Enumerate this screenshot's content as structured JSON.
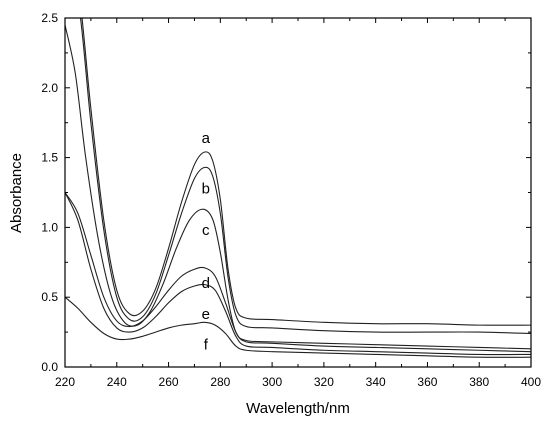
{
  "chart_data": {
    "type": "line",
    "title": "",
    "xlabel": "Wavelength/nm",
    "ylabel": "Absorbance",
    "xlim": [
      220,
      400
    ],
    "ylim": [
      0.0,
      2.5
    ],
    "grid": false,
    "legend": "none",
    "line_color": "#222222",
    "x_ticks": [
      220,
      240,
      260,
      280,
      300,
      320,
      340,
      360,
      380,
      400
    ],
    "x_tick_labels": [
      "220",
      "240",
      "260",
      "280",
      "300",
      "320",
      "340",
      "360",
      "380",
      "400"
    ],
    "y_ticks": [
      0.0,
      0.5,
      1.0,
      1.5,
      2.0,
      2.5
    ],
    "y_tick_labels": [
      "0.0",
      "0.5",
      "1.0",
      "1.5",
      "2.0",
      "2.5"
    ],
    "series": [
      {
        "name": "a",
        "label_anchor": [
          274,
          1.64
        ],
        "points": [
          [
            220,
            3.5
          ],
          [
            226,
            2.6
          ],
          [
            230,
            1.85
          ],
          [
            235,
            1.05
          ],
          [
            240,
            0.55
          ],
          [
            245,
            0.38
          ],
          [
            250,
            0.4
          ],
          [
            255,
            0.56
          ],
          [
            260,
            0.85
          ],
          [
            265,
            1.18
          ],
          [
            270,
            1.45
          ],
          [
            274,
            1.54
          ],
          [
            277,
            1.48
          ],
          [
            280,
            1.2
          ],
          [
            283,
            0.7
          ],
          [
            286,
            0.42
          ],
          [
            290,
            0.35
          ],
          [
            300,
            0.34
          ],
          [
            320,
            0.32
          ],
          [
            340,
            0.31
          ],
          [
            360,
            0.31
          ],
          [
            380,
            0.3
          ],
          [
            400,
            0.3
          ]
        ]
      },
      {
        "name": "b",
        "label_anchor": [
          274,
          1.28
        ],
        "points": [
          [
            220,
            3.3
          ],
          [
            226,
            2.5
          ],
          [
            230,
            1.75
          ],
          [
            235,
            0.98
          ],
          [
            240,
            0.5
          ],
          [
            245,
            0.34
          ],
          [
            250,
            0.36
          ],
          [
            255,
            0.52
          ],
          [
            260,
            0.8
          ],
          [
            265,
            1.1
          ],
          [
            270,
            1.35
          ],
          [
            274,
            1.43
          ],
          [
            277,
            1.37
          ],
          [
            280,
            1.1
          ],
          [
            283,
            0.64
          ],
          [
            286,
            0.37
          ],
          [
            290,
            0.29
          ],
          [
            300,
            0.28
          ],
          [
            320,
            0.26
          ],
          [
            340,
            0.25
          ],
          [
            360,
            0.25
          ],
          [
            380,
            0.25
          ],
          [
            400,
            0.24
          ]
        ]
      },
      {
        "name": "c",
        "label_anchor": [
          274,
          0.98
        ],
        "points": [
          [
            220,
            2.45
          ],
          [
            224,
            2.1
          ],
          [
            228,
            1.5
          ],
          [
            233,
            0.9
          ],
          [
            238,
            0.5
          ],
          [
            243,
            0.32
          ],
          [
            248,
            0.3
          ],
          [
            253,
            0.4
          ],
          [
            258,
            0.6
          ],
          [
            263,
            0.85
          ],
          [
            268,
            1.05
          ],
          [
            273,
            1.13
          ],
          [
            277,
            1.06
          ],
          [
            280,
            0.82
          ],
          [
            283,
            0.48
          ],
          [
            286,
            0.25
          ],
          [
            290,
            0.19
          ],
          [
            300,
            0.18
          ],
          [
            320,
            0.17
          ],
          [
            340,
            0.16
          ],
          [
            360,
            0.15
          ],
          [
            380,
            0.14
          ],
          [
            400,
            0.13
          ]
        ]
      },
      {
        "name": "d",
        "label_anchor": [
          274,
          0.6
        ],
        "points": [
          [
            220,
            1.25
          ],
          [
            225,
            1.1
          ],
          [
            230,
            0.8
          ],
          [
            235,
            0.5
          ],
          [
            240,
            0.33
          ],
          [
            245,
            0.29
          ],
          [
            250,
            0.33
          ],
          [
            255,
            0.43
          ],
          [
            260,
            0.55
          ],
          [
            265,
            0.65
          ],
          [
            270,
            0.7
          ],
          [
            274,
            0.71
          ],
          [
            278,
            0.65
          ],
          [
            282,
            0.46
          ],
          [
            286,
            0.25
          ],
          [
            290,
            0.18
          ],
          [
            300,
            0.17
          ],
          [
            320,
            0.15
          ],
          [
            340,
            0.14
          ],
          [
            360,
            0.13
          ],
          [
            380,
            0.12
          ],
          [
            400,
            0.11
          ]
        ]
      },
      {
        "name": "e",
        "label_anchor": [
          274,
          0.38
        ],
        "points": [
          [
            220,
            1.25
          ],
          [
            225,
            1.05
          ],
          [
            230,
            0.7
          ],
          [
            235,
            0.42
          ],
          [
            240,
            0.28
          ],
          [
            245,
            0.25
          ],
          [
            250,
            0.28
          ],
          [
            255,
            0.36
          ],
          [
            260,
            0.46
          ],
          [
            265,
            0.54
          ],
          [
            270,
            0.58
          ],
          [
            274,
            0.59
          ],
          [
            278,
            0.55
          ],
          [
            282,
            0.4
          ],
          [
            286,
            0.22
          ],
          [
            290,
            0.15
          ],
          [
            300,
            0.14
          ],
          [
            320,
            0.12
          ],
          [
            340,
            0.11
          ],
          [
            360,
            0.1
          ],
          [
            380,
            0.09
          ],
          [
            400,
            0.09
          ]
        ]
      },
      {
        "name": "f",
        "label_anchor": [
          274,
          0.16
        ],
        "points": [
          [
            220,
            0.5
          ],
          [
            225,
            0.42
          ],
          [
            230,
            0.32
          ],
          [
            235,
            0.24
          ],
          [
            240,
            0.2
          ],
          [
            245,
            0.2
          ],
          [
            250,
            0.22
          ],
          [
            255,
            0.25
          ],
          [
            260,
            0.28
          ],
          [
            265,
            0.3
          ],
          [
            270,
            0.31
          ],
          [
            274,
            0.32
          ],
          [
            278,
            0.3
          ],
          [
            282,
            0.24
          ],
          [
            286,
            0.15
          ],
          [
            290,
            0.12
          ],
          [
            300,
            0.11
          ],
          [
            320,
            0.1
          ],
          [
            340,
            0.09
          ],
          [
            360,
            0.08
          ],
          [
            380,
            0.07
          ],
          [
            400,
            0.07
          ]
        ]
      }
    ]
  }
}
